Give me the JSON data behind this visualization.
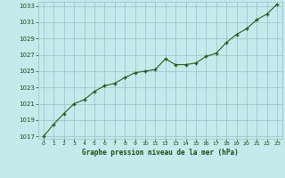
{
  "x": [
    0,
    1,
    2,
    3,
    4,
    5,
    6,
    7,
    8,
    9,
    10,
    11,
    12,
    13,
    14,
    15,
    16,
    17,
    18,
    19,
    20,
    21,
    22,
    23
  ],
  "y": [
    1017.0,
    1018.5,
    1019.8,
    1021.0,
    1021.5,
    1022.5,
    1023.2,
    1023.5,
    1024.2,
    1024.8,
    1025.0,
    1025.2,
    1026.5,
    1025.8,
    1025.8,
    1026.0,
    1026.8,
    1027.2,
    1028.5,
    1029.5,
    1030.2,
    1031.3,
    1032.0,
    1033.2
  ],
  "line_color": "#2d5a1b",
  "marker_color": "#2d5a1b",
  "bg_color": "#c5eaec",
  "grid_color": "#9bbfc4",
  "xlabel": "Graphe pression niveau de la mer (hPa)",
  "xlabel_color": "#1a4a10",
  "tick_color": "#1a4a10",
  "ylim_min": 1017,
  "ylim_max": 1034,
  "yticks": [
    1017,
    1019,
    1021,
    1023,
    1025,
    1027,
    1029,
    1031,
    1033
  ],
  "xticks": [
    0,
    1,
    2,
    3,
    4,
    5,
    6,
    7,
    8,
    9,
    10,
    11,
    12,
    13,
    14,
    15,
    16,
    17,
    18,
    19,
    20,
    21,
    22,
    23
  ],
  "line_width": 0.8,
  "marker_size": 2.5
}
